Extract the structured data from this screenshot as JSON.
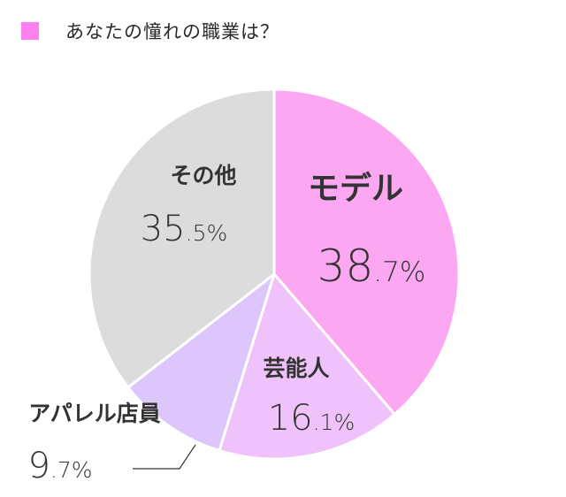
{
  "legend": {
    "title": "あなたの憧れの職業は？",
    "swatch_color": "#ff80f0"
  },
  "chart_data": {
    "type": "pie",
    "title": "あなたの憧れの職業は？",
    "slices": [
      {
        "label": "モデル",
        "value": 38.7,
        "display": "38.7%",
        "color": "#fba7f1"
      },
      {
        "label": "芸能人",
        "value": 16.1,
        "display": "16.1%",
        "color": "#f0c2fb"
      },
      {
        "label": "アパレル店員",
        "value": 9.7,
        "display": "9.7%",
        "color": "#dcc6fb"
      },
      {
        "label": "その他",
        "value": 35.5,
        "display": "35.5%",
        "color": "#dcdcdc"
      }
    ],
    "start_angle": "12 o'clock",
    "direction": "clockwise"
  }
}
